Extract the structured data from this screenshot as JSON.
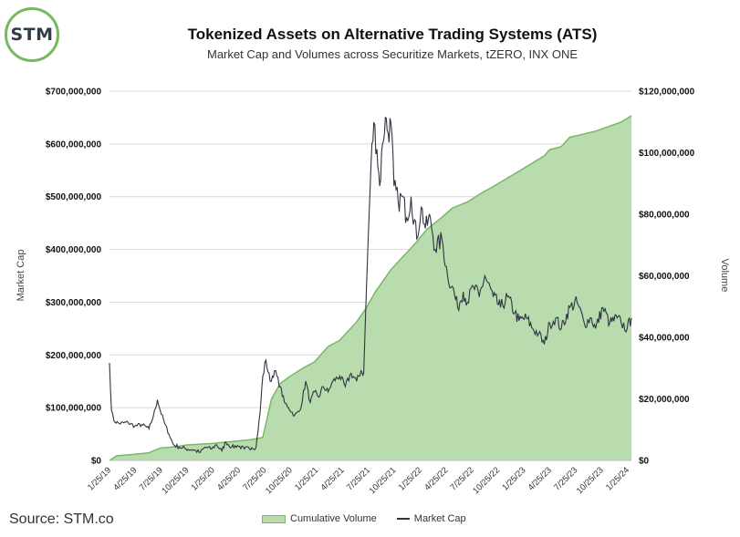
{
  "logo": {
    "text": "STM"
  },
  "title": "Tokenized Assets on Alternative Trading Systems (ATS)",
  "subtitle": "Market Cap and Volumes across Securitize Markets, tZERO, INX ONE",
  "source": "Source: STM.co",
  "colors": {
    "area_fill": "#b8dcae",
    "area_stroke": "#7ab767",
    "line": "#2e3440",
    "grid": "#d9d9d9",
    "logo_ring": "#76b95e"
  },
  "chart_data": {
    "type": "line",
    "xlabel": "",
    "ylabel": "Market Cap",
    "y2label": "Volume",
    "ylim": [
      0,
      700000000
    ],
    "y2lim": [
      0,
      120000000
    ],
    "grid": true,
    "legend_position": "bottom-center",
    "x_tick_labels": [
      "1/25/19",
      "4/25/19",
      "7/25/19",
      "10/25/19",
      "1/25/20",
      "4/25/20",
      "7/25/20",
      "10/25/20",
      "1/25/21",
      "4/25/21",
      "7/25/21",
      "10/25/21",
      "1/25/22",
      "4/25/22",
      "7/25/22",
      "10/25/22",
      "1/25/23",
      "4/25/23",
      "7/25/23",
      "10/25/23",
      "1/25/24"
    ],
    "y_tick_labels": [
      "$0",
      "$100,000,000",
      "$200,000,000",
      "$300,000,000",
      "$400,000,000",
      "$500,000,000",
      "$600,000,000",
      "$700,000,000"
    ],
    "y2_tick_labels": [
      "$0",
      "$20,000,000",
      "$40,000,000",
      "$60,000,000",
      "$80,000,000",
      "$100,000,000",
      "$120,000,000"
    ],
    "series": [
      {
        "name": "Cumulative Volume",
        "type": "area",
        "axis": "right",
        "x": [
          "2019-01-25",
          "2019-02-20",
          "2019-04-25",
          "2019-06-15",
          "2019-07-25",
          "2019-09-25",
          "2019-10-25",
          "2020-01-25",
          "2020-04-25",
          "2020-06-15",
          "2020-07-25",
          "2020-08-25",
          "2020-09-25",
          "2020-10-25",
          "2020-12-15",
          "2021-01-25",
          "2021-03-15",
          "2021-04-25",
          "2021-05-25",
          "2021-06-25",
          "2021-07-25",
          "2021-09-01",
          "2021-10-25",
          "2021-12-15",
          "2022-01-25",
          "2022-03-01",
          "2022-04-25",
          "2022-06-01",
          "2022-07-25",
          "2022-09-15",
          "2022-10-25",
          "2023-01-25",
          "2023-04-25",
          "2023-05-15",
          "2023-06-25",
          "2023-07-25",
          "2023-10-25",
          "2024-01-25",
          "2024-03-01"
        ],
        "values": [
          0,
          1500000,
          2000000,
          2500000,
          4000000,
          4500000,
          5000000,
          5500000,
          6300000,
          6800000,
          7500000,
          20000000,
          25000000,
          27000000,
          30000000,
          32000000,
          37000000,
          39000000,
          42000000,
          45000000,
          49000000,
          55000000,
          62000000,
          67000000,
          71000000,
          75000000,
          79000000,
          82000000,
          84000000,
          87000000,
          89000000,
          94000000,
          99000000,
          101000000,
          102000000,
          105000000,
          107000000,
          110000000,
          112000000
        ]
      },
      {
        "name": "Market Cap",
        "type": "line",
        "axis": "left",
        "x": [
          "2019-01-25",
          "2019-02-01",
          "2019-02-10",
          "2019-03-01",
          "2019-04-01",
          "2019-04-25",
          "2019-05-20",
          "2019-06-15",
          "2019-07-01",
          "2019-07-15",
          "2019-07-25",
          "2019-08-10",
          "2019-08-25",
          "2019-09-10",
          "2019-10-01",
          "2019-10-25",
          "2019-11-20",
          "2019-12-15",
          "2020-01-01",
          "2020-01-25",
          "2020-02-10",
          "2020-03-01",
          "2020-03-15",
          "2020-04-05",
          "2020-04-25",
          "2020-05-20",
          "2020-06-15",
          "2020-07-01",
          "2020-07-15",
          "2020-07-25",
          "2020-08-05",
          "2020-08-20",
          "2020-09-05",
          "2020-09-25",
          "2020-10-10",
          "2020-10-25",
          "2020-11-15",
          "2020-12-05",
          "2020-12-25",
          "2021-01-10",
          "2021-01-25",
          "2021-02-10",
          "2021-02-25",
          "2021-03-15",
          "2021-04-01",
          "2021-04-25",
          "2021-05-15",
          "2021-06-05",
          "2021-06-25",
          "2021-07-10",
          "2021-07-20",
          "2021-07-28",
          "2021-08-05",
          "2021-08-15",
          "2021-08-25",
          "2021-09-05",
          "2021-09-15",
          "2021-09-25",
          "2021-10-05",
          "2021-10-15",
          "2021-10-25",
          "2021-11-05",
          "2021-11-20",
          "2021-12-05",
          "2021-12-20",
          "2022-01-05",
          "2022-01-25",
          "2022-02-10",
          "2022-02-25",
          "2022-03-15",
          "2022-04-01",
          "2022-04-25",
          "2022-05-15",
          "2022-06-01",
          "2022-06-20",
          "2022-07-10",
          "2022-07-25",
          "2022-08-15",
          "2022-09-05",
          "2022-09-25",
          "2022-10-25",
          "2022-11-20",
          "2022-12-15",
          "2023-01-10",
          "2023-01-25",
          "2023-02-20",
          "2023-03-15",
          "2023-04-05",
          "2023-04-25",
          "2023-05-15",
          "2023-06-05",
          "2023-06-25",
          "2023-07-25",
          "2023-08-20",
          "2023-09-15",
          "2023-10-10",
          "2023-10-25",
          "2023-11-20",
          "2023-12-15",
          "2024-01-10",
          "2024-01-25",
          "2024-02-15",
          "2024-03-01"
        ],
        "values": [
          185000000,
          95000000,
          75000000,
          70000000,
          72000000,
          65000000,
          68000000,
          60000000,
          85000000,
          115000000,
          95000000,
          70000000,
          50000000,
          30000000,
          25000000,
          22000000,
          20000000,
          15000000,
          25000000,
          22000000,
          30000000,
          18000000,
          35000000,
          25000000,
          28000000,
          22000000,
          24000000,
          25000000,
          90000000,
          160000000,
          190000000,
          150000000,
          170000000,
          140000000,
          110000000,
          100000000,
          85000000,
          95000000,
          150000000,
          110000000,
          130000000,
          120000000,
          140000000,
          130000000,
          150000000,
          160000000,
          140000000,
          165000000,
          150000000,
          170000000,
          165000000,
          300000000,
          420000000,
          560000000,
          640000000,
          590000000,
          520000000,
          600000000,
          650000000,
          620000000,
          640000000,
          520000000,
          490000000,
          500000000,
          460000000,
          500000000,
          420000000,
          480000000,
          440000000,
          460000000,
          400000000,
          420000000,
          350000000,
          330000000,
          290000000,
          320000000,
          300000000,
          330000000,
          310000000,
          350000000,
          310000000,
          290000000,
          310000000,
          280000000,
          265000000,
          270000000,
          250000000,
          240000000,
          220000000,
          260000000,
          270000000,
          250000000,
          290000000,
          300000000,
          260000000,
          270000000,
          250000000,
          290000000,
          260000000,
          270000000,
          260000000,
          250000000,
          270000000
        ]
      }
    ]
  }
}
